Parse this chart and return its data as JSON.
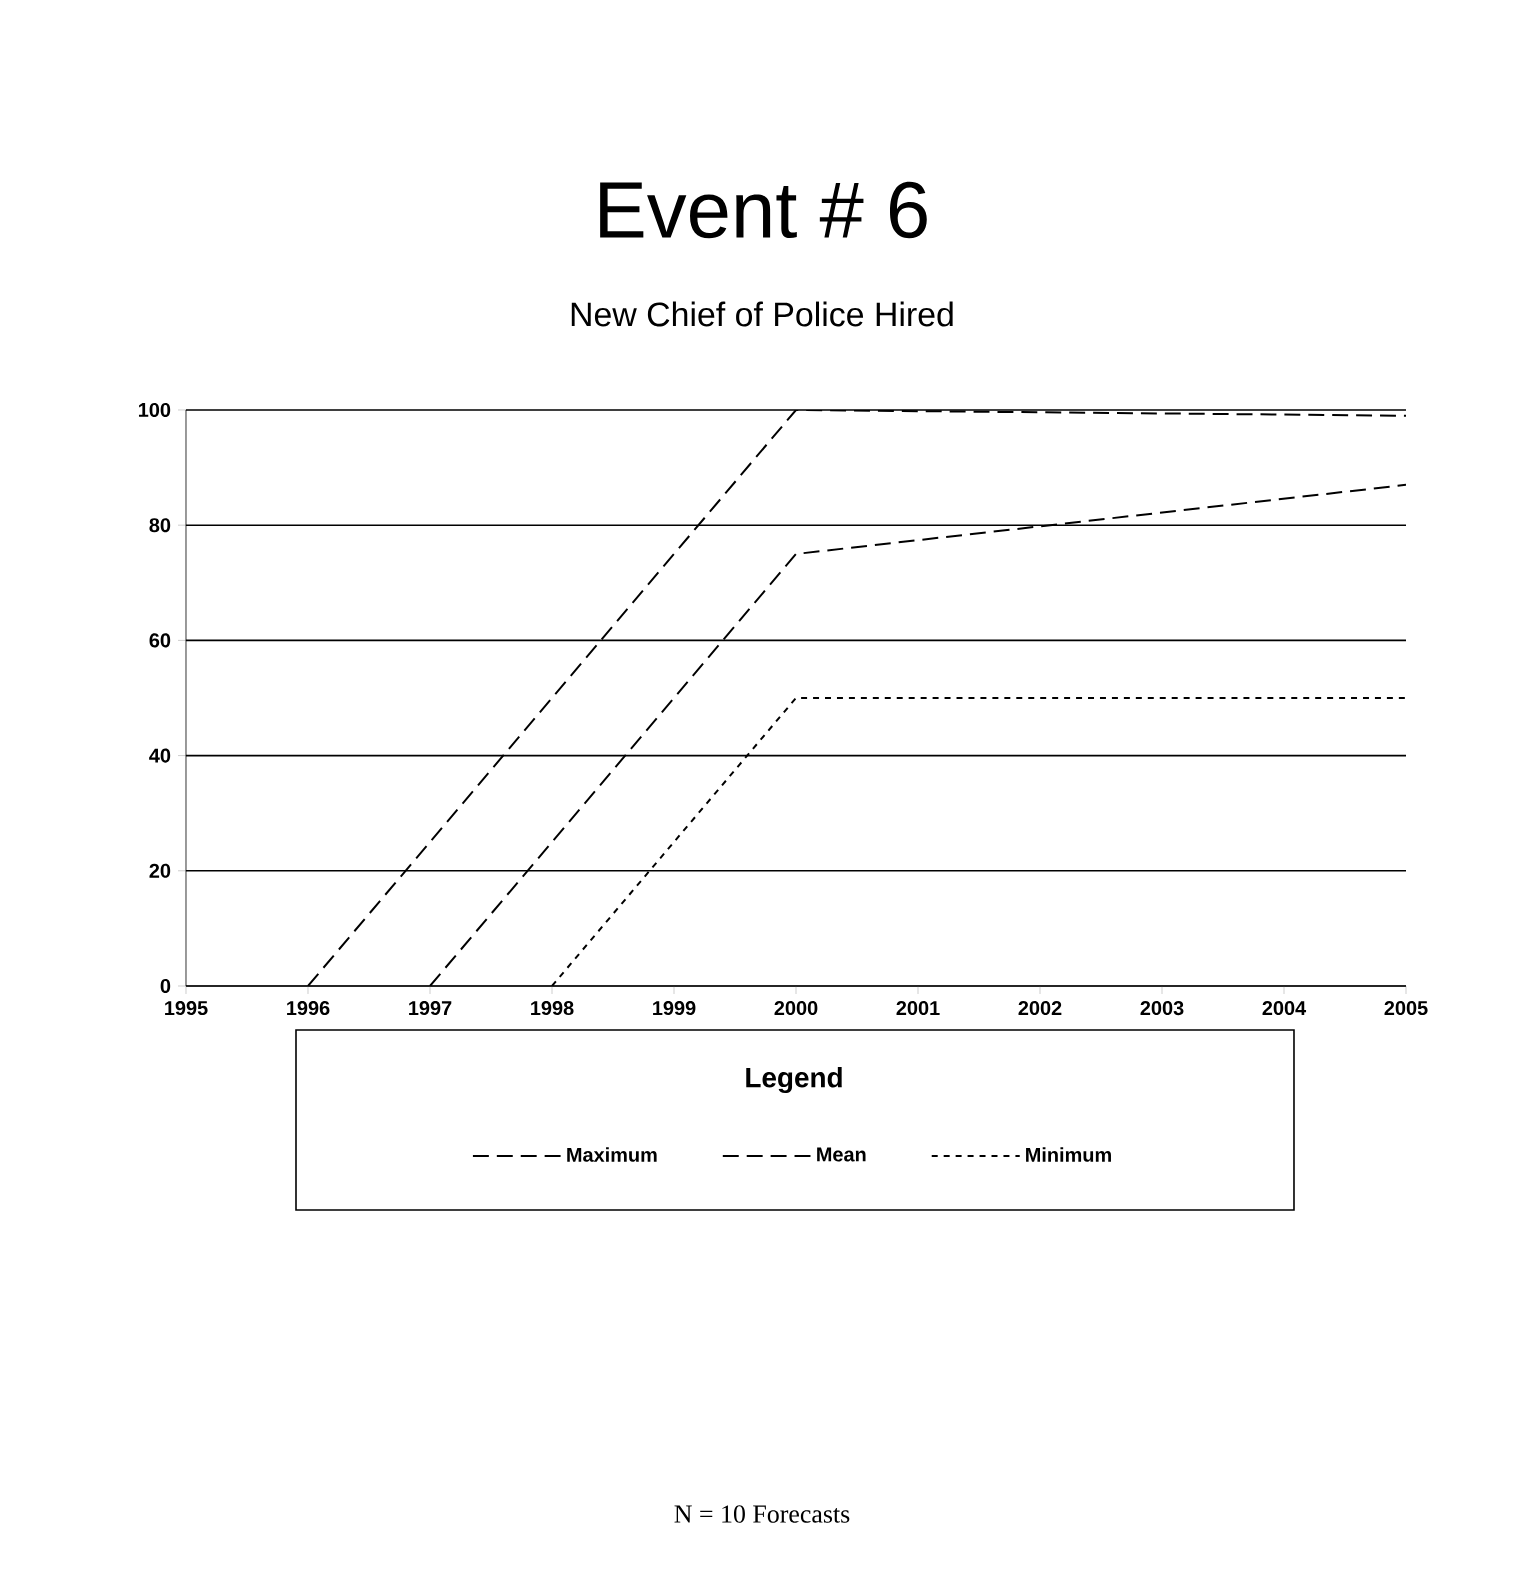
{
  "chart_data": {
    "type": "line",
    "title": "Event # 6",
    "subtitle": "New Chief of Police Hired",
    "series": [
      {
        "name": "Maximum",
        "color": "#000000",
        "line_style": "dashed",
        "x": [
          1996,
          2000,
          2005
        ],
        "values": [
          0,
          100,
          99
        ]
      },
      {
        "name": "Mean",
        "color": "#000000",
        "line_style": "dashed",
        "x": [
          1997,
          2000,
          2005
        ],
        "values": [
          0,
          75,
          87
        ]
      },
      {
        "name": "Minimum",
        "color": "#000000",
        "line_style": "dotted",
        "x": [
          1998,
          2000,
          2005
        ],
        "values": [
          0,
          50,
          50
        ]
      }
    ],
    "xlim": [
      1995,
      2005
    ],
    "xticks": [
      1995,
      1996,
      1997,
      1998,
      1999,
      2000,
      2001,
      2002,
      2003,
      2004,
      2005
    ],
    "ylim": [
      0,
      100
    ],
    "yticks": [
      0,
      20,
      40,
      60,
      80,
      100
    ],
    "grid": "y",
    "legend": "bottom",
    "legend_title": "Legend",
    "annotations": [
      "N = 10 Forecasts"
    ]
  }
}
